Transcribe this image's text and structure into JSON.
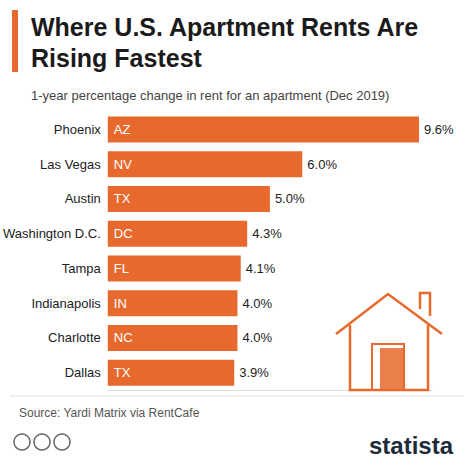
{
  "chart_data": {
    "type": "bar",
    "orientation": "horizontal",
    "title": "Where U.S. Apartment Rents Are Rising Fastest",
    "subtitle": "1-year percentage change in rent for an apartment (Dec 2019)",
    "categories": [
      "Phoenix",
      "Las Vegas",
      "Austin",
      "Washington D.C.",
      "Tampa",
      "Indianapolis",
      "Charlotte",
      "Dallas"
    ],
    "state_labels": [
      "AZ",
      "NV",
      "TX",
      "DC",
      "FL",
      "IN",
      "NC",
      "TX"
    ],
    "values": [
      9.6,
      6.0,
      5.0,
      4.3,
      4.1,
      4.0,
      4.0,
      3.9
    ],
    "value_labels": [
      "9.6%",
      "6.0%",
      "5.0%",
      "4.3%",
      "4.1%",
      "4.0%",
      "4.0%",
      "3.9%"
    ],
    "color": "#e8692d",
    "xlim": [
      0,
      10
    ],
    "grid": false,
    "data_labels": true,
    "tick_labels": "y",
    "source": "Source: Yardi Matrix via RentCafe",
    "logo": "statista"
  }
}
